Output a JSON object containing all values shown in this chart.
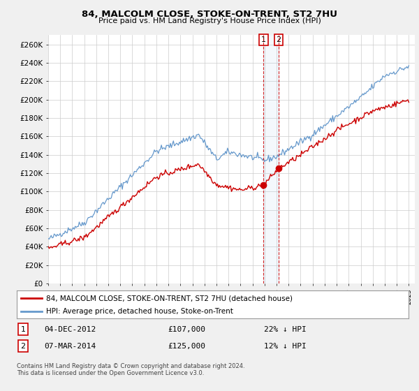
{
  "title": "84, MALCOLM CLOSE, STOKE-ON-TRENT, ST2 7HU",
  "subtitle": "Price paid vs. HM Land Registry's House Price Index (HPI)",
  "ylim": [
    0,
    270000
  ],
  "yticks": [
    0,
    20000,
    40000,
    60000,
    80000,
    100000,
    120000,
    140000,
    160000,
    180000,
    200000,
    220000,
    240000,
    260000
  ],
  "ytick_labels": [
    "£0",
    "£20K",
    "£40K",
    "£60K",
    "£80K",
    "£100K",
    "£120K",
    "£140K",
    "£160K",
    "£180K",
    "£200K",
    "£220K",
    "£240K",
    "£260K"
  ],
  "sale1_date": 2012.92,
  "sale1_price": 107000,
  "sale2_date": 2014.17,
  "sale2_price": 125000,
  "red_line_color": "#cc0000",
  "blue_line_color": "#6699cc",
  "vline_color": "#cc0000",
  "legend_label_red": "84, MALCOLM CLOSE, STOKE-ON-TRENT, ST2 7HU (detached house)",
  "legend_label_blue": "HPI: Average price, detached house, Stoke-on-Trent",
  "footer": "Contains HM Land Registry data © Crown copyright and database right 2024.\nThis data is licensed under the Open Government Licence v3.0.",
  "background_color": "#f0f0f0",
  "plot_bg_color": "#ffffff"
}
